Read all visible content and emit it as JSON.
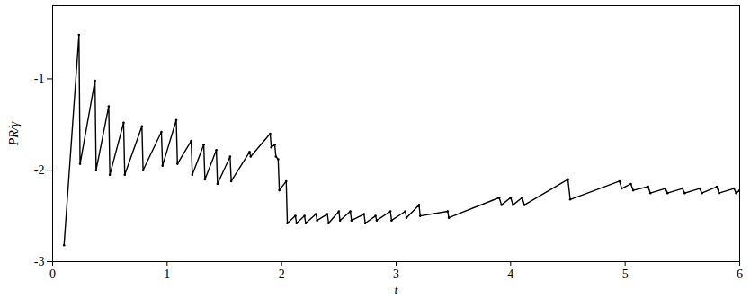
{
  "chart_data": {
    "type": "line",
    "x_label": "t",
    "y_label": "PR/γ",
    "xlim": [
      0,
      6
    ],
    "ylim": [
      -3,
      -0.2
    ],
    "xticks": [
      0,
      1,
      2,
      3,
      4,
      5,
      6
    ],
    "yticks": [
      -3,
      -2,
      -1
    ],
    "color": "#000000",
    "marker": "circle",
    "x": [
      0.1,
      0.23,
      0.24,
      0.37,
      0.38,
      0.49,
      0.5,
      0.62,
      0.63,
      0.78,
      0.79,
      0.95,
      0.96,
      1.08,
      1.09,
      1.21,
      1.22,
      1.32,
      1.33,
      1.43,
      1.44,
      1.55,
      1.56,
      1.72,
      1.73,
      1.9,
      1.91,
      1.94,
      1.95,
      1.97,
      1.98,
      2.04,
      2.05,
      2.12,
      2.13,
      2.2,
      2.21,
      2.3,
      2.31,
      2.4,
      2.41,
      2.5,
      2.51,
      2.6,
      2.61,
      2.72,
      2.73,
      2.82,
      2.83,
      2.95,
      2.96,
      3.08,
      3.09,
      3.2,
      3.21,
      3.45,
      3.46,
      3.9,
      3.92,
      4.0,
      4.02,
      4.1,
      4.12,
      4.5,
      4.52,
      4.95,
      4.97,
      5.05,
      5.07,
      5.2,
      5.22,
      5.35,
      5.37,
      5.5,
      5.52,
      5.65,
      5.67,
      5.8,
      5.82,
      5.95,
      5.97,
      6.0
    ],
    "values": [
      -2.82,
      -0.52,
      -1.93,
      -1.02,
      -2.0,
      -1.3,
      -2.05,
      -1.48,
      -2.05,
      -1.52,
      -2.0,
      -1.58,
      -1.95,
      -1.45,
      -1.93,
      -1.68,
      -2.05,
      -1.72,
      -2.1,
      -1.78,
      -2.15,
      -1.85,
      -2.12,
      -1.8,
      -1.85,
      -1.6,
      -1.75,
      -1.72,
      -1.85,
      -1.88,
      -2.22,
      -2.12,
      -2.58,
      -2.5,
      -2.58,
      -2.5,
      -2.58,
      -2.48,
      -2.55,
      -2.48,
      -2.58,
      -2.45,
      -2.55,
      -2.45,
      -2.55,
      -2.48,
      -2.58,
      -2.5,
      -2.55,
      -2.45,
      -2.55,
      -2.45,
      -2.52,
      -2.38,
      -2.5,
      -2.45,
      -2.52,
      -2.3,
      -2.38,
      -2.3,
      -2.38,
      -2.3,
      -2.38,
      -2.1,
      -2.32,
      -2.12,
      -2.2,
      -2.15,
      -2.22,
      -2.18,
      -2.25,
      -2.2,
      -2.25,
      -2.2,
      -2.25,
      -2.2,
      -2.25,
      -2.18,
      -2.25,
      -2.2,
      -2.25,
      -2.22
    ]
  }
}
